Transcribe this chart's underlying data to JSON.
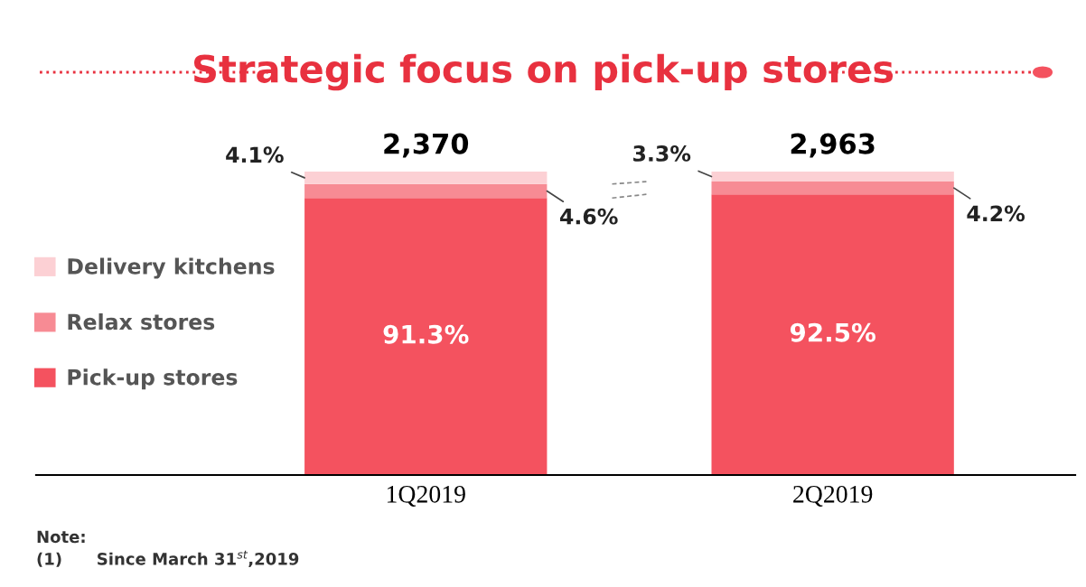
{
  "chart_data": {
    "type": "bar",
    "stacked": true,
    "title": "Strategic focus on pick-up stores",
    "categories": [
      "1Q2019",
      "2Q2019"
    ],
    "series": [
      {
        "name": "Pick-up stores",
        "color": "#f4525f",
        "values": [
          91.3,
          92.5
        ],
        "value_labels": [
          "91.3%",
          "92.5%"
        ]
      },
      {
        "name": "Relax stores",
        "color": "#f78b94",
        "values": [
          4.6,
          4.2
        ],
        "value_labels": [
          "4.6%",
          "4.2%"
        ]
      },
      {
        "name": "Delivery kitchens",
        "color": "#fcd0d4",
        "values": [
          4.1,
          3.3
        ],
        "value_labels": [
          "4.1%",
          "3.3%"
        ]
      }
    ],
    "ylim": [
      0,
      100
    ],
    "tick_labels": "x",
    "grid": false,
    "legend": "left",
    "annotations": [
      {
        "text": "2,370",
        "x": "1Q2019",
        "y": 100
      },
      {
        "text": "2,963",
        "x": "2Q2019",
        "y": 100
      },
      "Note:",
      "(1)      Since March 31$^{st}$,2019"
    ]
  }
}
